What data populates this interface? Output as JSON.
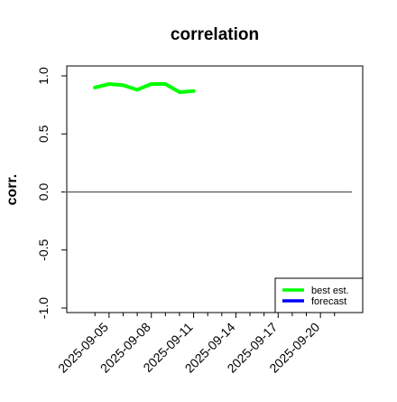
{
  "chart_data": {
    "type": "line",
    "title": "correlation",
    "xlabel": "",
    "ylabel": "corr.",
    "ylim": [
      -1.0,
      1.0
    ],
    "yticks": [
      -1.0,
      -0.5,
      0.0,
      0.5,
      1.0
    ],
    "ytick_labels": [
      "-1.0",
      "-0.5",
      "0.0",
      "0.5",
      "1.0"
    ],
    "xlim": [
      "2025-09-02",
      "2025-09-23"
    ],
    "xticks": [
      "2025-09-04",
      "2025-09-05",
      "2025-09-06",
      "2025-09-07",
      "2025-09-08",
      "2025-09-09",
      "2025-09-10",
      "2025-09-11",
      "2025-09-12",
      "2025-09-13",
      "2025-09-14",
      "2025-09-15",
      "2025-09-16",
      "2025-09-17",
      "2025-09-18",
      "2025-09-19",
      "2025-09-20",
      "2025-09-21"
    ],
    "xtick_labels": [
      "2025-09-05",
      "2025-09-08",
      "2025-09-11",
      "2025-09-14",
      "2025-09-17",
      "2025-09-20"
    ],
    "xtick_label_dates": [
      "2025-09-05",
      "2025-09-08",
      "2025-09-11",
      "2025-09-14",
      "2025-09-17",
      "2025-09-20"
    ],
    "highlight_tick": "2025-09-11",
    "highlight_color": "#228B22",
    "reference_line": 0.0,
    "series": [
      {
        "name": "best est.",
        "color": "#00ff00",
        "x": [
          "2025-09-04",
          "2025-09-05",
          "2025-09-06",
          "2025-09-07",
          "2025-09-08",
          "2025-09-09",
          "2025-09-10",
          "2025-09-11"
        ],
        "y": [
          0.9,
          0.93,
          0.92,
          0.88,
          0.93,
          0.93,
          0.86,
          0.87
        ]
      },
      {
        "name": "forecast",
        "color": "#0000ff",
        "x": [],
        "y": []
      }
    ],
    "legend": "bottom-right"
  }
}
